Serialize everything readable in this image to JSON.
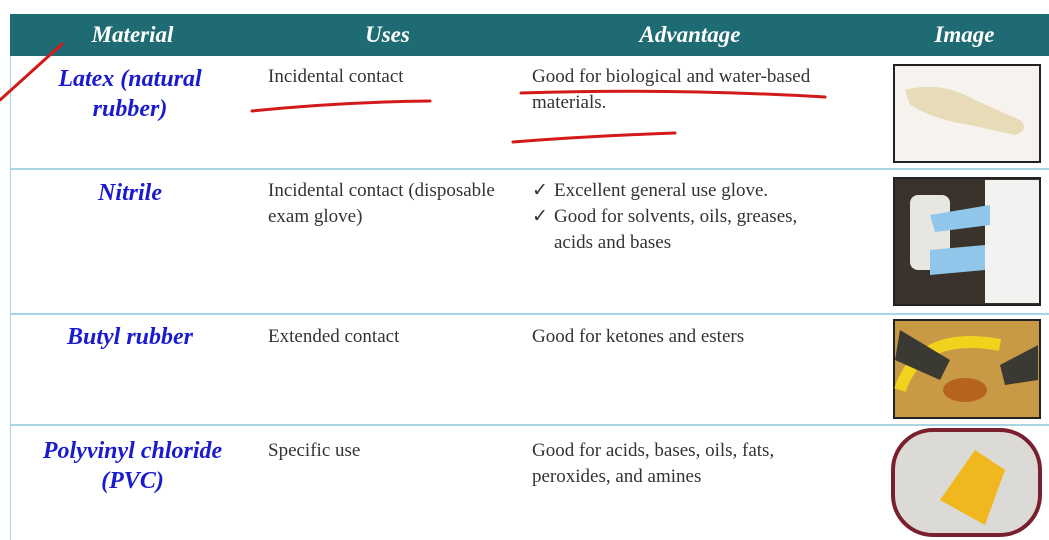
{
  "table": {
    "headers": [
      "Material",
      "Uses",
      "Advantage",
      "Image"
    ],
    "rows": [
      {
        "material": "Latex (natural rubber)",
        "uses": "Incidental contact",
        "advantage": "Good for biological and water-based materials."
      },
      {
        "material": "Nitrile",
        "uses": "Incidental contact (disposable exam glove)",
        "advantage": [
          "Excellent general use glove.",
          "Good for solvents, oils, greases, acids and bases"
        ]
      },
      {
        "material": "Butyl rubber",
        "uses": "Extended contact",
        "advantage": "Good for ketones and esters"
      },
      {
        "material": "Polyvinyl chloride (PVC)",
        "uses": "Specific use",
        "advantage": "Good for acids, bases, oils, fats, peroxides, and amines"
      }
    ]
  }
}
